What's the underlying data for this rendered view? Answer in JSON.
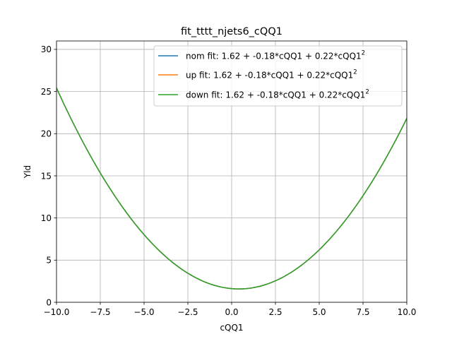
{
  "chart_data": {
    "type": "line",
    "title": "fit_tttt_njets6_cQQ1",
    "xlabel": "cQQ1",
    "ylabel": "Yld",
    "xlim": [
      -10,
      10
    ],
    "ylim": [
      0,
      31
    ],
    "xticks": [
      -10,
      -7.5,
      -5,
      -2.5,
      0,
      2.5,
      5,
      7.5,
      10
    ],
    "xtick_labels": [
      "−10.0",
      "−7.5",
      "−5.0",
      "−2.5",
      "0.0",
      "2.5",
      "5.0",
      "7.5",
      "10.0"
    ],
    "yticks": [
      0,
      5,
      10,
      15,
      20,
      25,
      30
    ],
    "ytick_labels": [
      "0",
      "5",
      "10",
      "15",
      "20",
      "25",
      "30"
    ],
    "grid": true,
    "legend_position": "top-right",
    "series": [
      {
        "name": "nom fit: 1.62 + -0.18*cQQ1 + 0.22*cQQ1",
        "superscript": "2",
        "color": "#1f77b4",
        "coefficients": [
          1.62,
          -0.18,
          0.22
        ]
      },
      {
        "name": "up fit: 1.62 + -0.18*cQQ1 + 0.22*cQQ1",
        "superscript": "2",
        "color": "#ff7f0e",
        "coefficients": [
          1.62,
          -0.18,
          0.22
        ]
      },
      {
        "name": "down fit: 1.62 + -0.18*cQQ1 + 0.22*cQQ1",
        "superscript": "2",
        "color": "#2ca02c",
        "coefficients": [
          1.62,
          -0.18,
          0.22
        ]
      }
    ]
  }
}
